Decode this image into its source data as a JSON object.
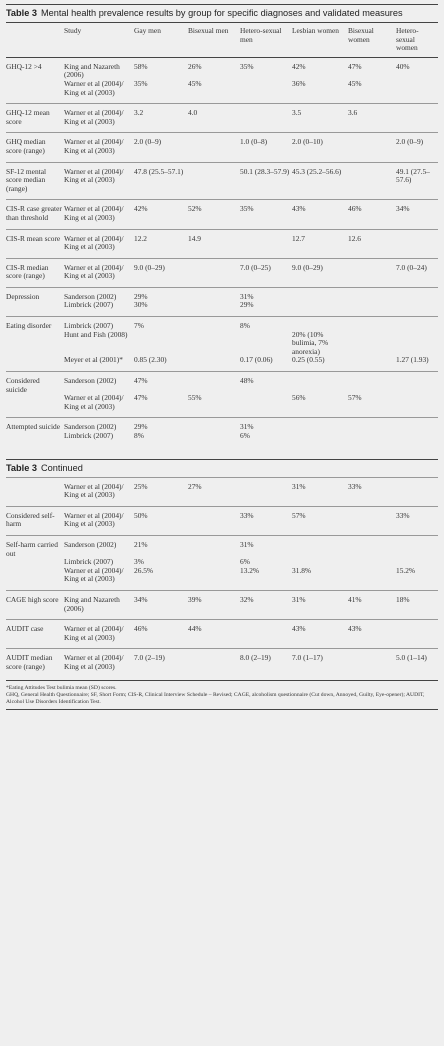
{
  "title": {
    "label": "Table 3",
    "text": "Mental health prevalence results by group for specific diagnoses and validated measures"
  },
  "header": [
    "Study",
    "Gay men",
    "Bisexual men",
    "Hetero-sexual men",
    "Lesbian women",
    "Bisexual women",
    "Hetero-sexual women"
  ],
  "sections": [
    {
      "rows": [
        {
          "measure": "GHQ-12 >4",
          "entries": [
            {
              "study": "King and Nazareth (2006)",
              "values": [
                "58%",
                "26%",
                "35%",
                "42%",
                "47%",
                "40%"
              ]
            },
            {
              "study": "Warner et al (2004)/ King et al (2003)",
              "values": [
                "35%",
                "45%",
                null,
                "36%",
                "45%",
                null
              ]
            }
          ]
        },
        {
          "measure": "GHQ-12 mean score",
          "entries": [
            {
              "study": "Warner et al (2004)/ King et al (2003)",
              "values": [
                "3.2",
                "4.0",
                null,
                "3.5",
                "3.6",
                null
              ]
            }
          ]
        },
        {
          "measure": "GHQ median score (range)",
          "entries": [
            {
              "study": "Warner et al (2004)/ King et al (2003)",
              "values": [
                "2.0 (0–9)",
                null,
                "1.0 (0–8)",
                "2.0 (0–10)",
                null,
                "2.0 (0–9)"
              ]
            }
          ]
        },
        {
          "measure": "SF-12 mental score median (range)",
          "entries": [
            {
              "study": "Warner et al (2004)/ King et al (2003)",
              "values": [
                "47.8 (25.5–57.1)",
                null,
                "50.1 (28.3–57.9)",
                "45.3 (25.2–56.6)",
                null,
                "49.1 (27.5–57.6)"
              ]
            }
          ]
        },
        {
          "measure": "CIS-R case greater than threshold",
          "entries": [
            {
              "study": "Warner et al (2004)/ King et al (2003)",
              "values": [
                "42%",
                "52%",
                "35%",
                "43%",
                "46%",
                "34%"
              ]
            }
          ]
        },
        {
          "measure": "CIS-R mean score",
          "entries": [
            {
              "study": "Warner et al (2004)/ King et al (2003)",
              "values": [
                "12.2",
                "14.9",
                null,
                "12.7",
                "12.6",
                null
              ]
            }
          ]
        },
        {
          "measure": "CIS-R median score (range)",
          "entries": [
            {
              "study": "Warner et al (2004)/ King et al (2003)",
              "values": [
                "9.0 (0–29)",
                null,
                "7.0 (0–25)",
                "9.0 (0–29)",
                null,
                "7.0 (0–24)"
              ]
            }
          ]
        },
        {
          "measure": "Depression",
          "entries": [
            {
              "study": "Sanderson (2002)",
              "values": [
                "29%",
                null,
                "31%",
                null,
                null,
                null
              ]
            },
            {
              "study": "Limbrick (2007)",
              "values": [
                "30%",
                null,
                "29%",
                null,
                null,
                null
              ]
            }
          ]
        },
        {
          "measure": "Eating disorder",
          "entries": [
            {
              "study": "Limbrick (2007)",
              "values": [
                "7%",
                null,
                "8%",
                null,
                null,
                null
              ]
            },
            {
              "study": "Hunt and Fish (2008)",
              "values": [
                null,
                null,
                null,
                "20% (10% bulimia, 7% anorexia)",
                null,
                null
              ]
            },
            {
              "study": "Meyer et al (2001)*",
              "values": [
                "0.85 (2.30)",
                null,
                "0.17 (0.06)",
                "0.25 (0.55)",
                null,
                "1.27 (1.93)"
              ]
            }
          ]
        },
        {
          "measure": "Considered suicide",
          "entries": [
            {
              "study": "Sanderson (2002)",
              "values": [
                "47%",
                null,
                "48%",
                null,
                null,
                null
              ]
            },
            {
              "study": "Warner et al (2004)/ King et al (2003)",
              "values": [
                "47%",
                "55%",
                null,
                "56%",
                "57%",
                null
              ]
            }
          ]
        },
        {
          "measure": "Attempted suicide",
          "entries": [
            {
              "study": "Sanderson (2002)",
              "values": [
                "29%",
                null,
                "31%",
                null,
                null,
                null
              ]
            },
            {
              "study": "Limbrick (2007)",
              "values": [
                "8%",
                null,
                "6%",
                null,
                null,
                null
              ]
            }
          ]
        }
      ]
    },
    {
      "continued": {
        "label": "Table 3",
        "text": "Continued"
      },
      "rows": [
        {
          "measure": null,
          "entries": [
            {
              "study": "Warner et al (2004)/ King et al (2003)",
              "values": [
                "25%",
                "27%",
                null,
                "31%",
                "33%",
                null
              ]
            }
          ]
        },
        {
          "measure": "Considered self-harm",
          "entries": [
            {
              "study": "Warner et al (2004)/ King et al (2003)",
              "values": [
                "50%",
                null,
                "33%",
                "57%",
                null,
                "33%"
              ]
            }
          ]
        },
        {
          "measure": "Self-harm carried out",
          "entries": [
            {
              "study": "Sanderson (2002)",
              "values": [
                "21%",
                null,
                "31%",
                null,
                null,
                null
              ]
            },
            {
              "study": "Limbrick (2007)",
              "values": [
                "3%",
                null,
                "6%",
                null,
                null,
                null
              ]
            },
            {
              "study": "Warner et al (2004)/ King et al (2003)",
              "values": [
                "26.5%",
                null,
                "13.2%",
                "31.8%",
                null,
                "15.2%"
              ]
            }
          ]
        },
        {
          "measure": "CAGE high score",
          "entries": [
            {
              "study": "King and Nazareth (2006)",
              "values": [
                "34%",
                "39%",
                "32%",
                "31%",
                "41%",
                "18%"
              ]
            }
          ]
        },
        {
          "measure": "AUDIT case",
          "entries": [
            {
              "study": "Warner et al (2004)/ King et al (2003)",
              "values": [
                "46%",
                "44%",
                null,
                "43%",
                "43%",
                null
              ]
            }
          ]
        },
        {
          "measure": "AUDIT median score (range)",
          "entries": [
            {
              "study": "Warner et al (2004)/ King et al (2003)",
              "values": [
                "7.0 (2–19)",
                null,
                "8.0 (2–19)",
                "7.0 (1–17)",
                null,
                "5.0 (1–14)"
              ]
            }
          ]
        }
      ]
    }
  ],
  "footnotes": [
    "*Eating Attitudes Test bulimia mean (SD) scores.",
    "GHQ, General Health Questionnaire; SF, Short Form; CIS-R, Clinical Interview Schedule – Revised; CAGE, alcoholism questionnaire (Cut down, Annoyed, Guilty, Eye-opener); AUDIT, Alcohol Use Disorders Identification Test."
  ]
}
